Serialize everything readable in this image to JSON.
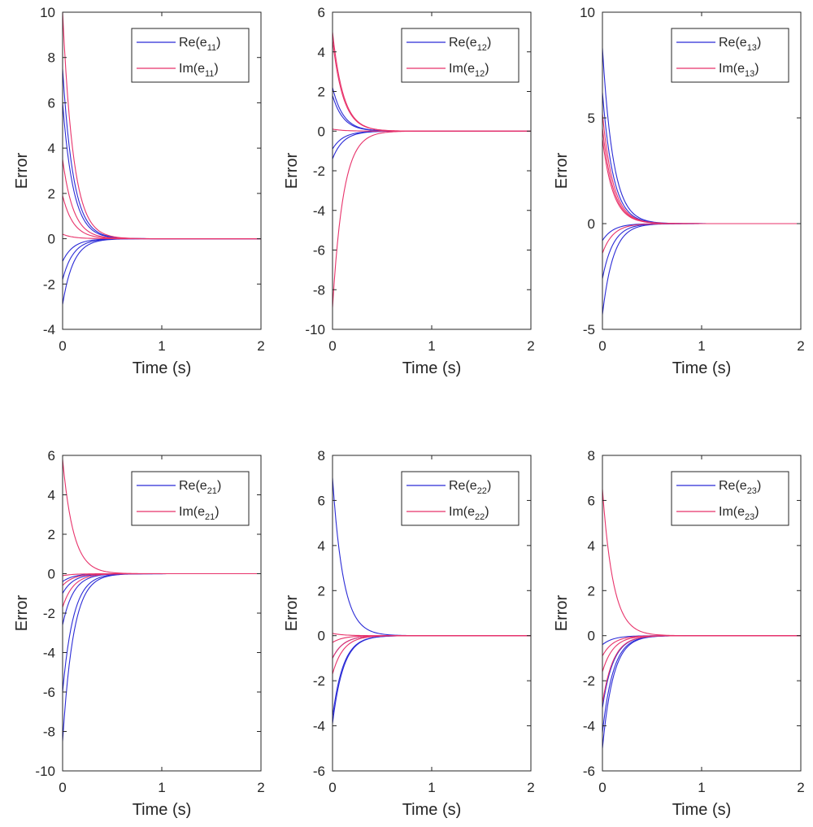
{
  "colors": {
    "re": "#2b2bd6",
    "im": "#e8336b",
    "axis": "#262626"
  },
  "chart_data": [
    {
      "type": "line",
      "xlabel": "Time (s)",
      "ylabel": "Error",
      "xlim": [
        0,
        2
      ],
      "ylim": [
        -4,
        10
      ],
      "xticks": [
        "0",
        "1",
        "2"
      ],
      "yticks": [
        "-4",
        "-2",
        "0",
        "2",
        "4",
        "6",
        "8",
        "10"
      ],
      "legend": {
        "position": "top-right",
        "entries": [
          {
            "base": "Re(e",
            "sub": "11",
            "close": ")"
          },
          {
            "base": "Im(e",
            "sub": "11",
            "close": ")"
          }
        ]
      },
      "series": [
        {
          "group": "re",
          "initial_values": [
            7.5,
            6.0,
            -1.0,
            -1.8,
            -2.9
          ],
          "settle_time": 0.6
        },
        {
          "group": "im",
          "initial_values": [
            10.0,
            3.5,
            1.9,
            0.2
          ],
          "settle_time": 0.6
        }
      ]
    },
    {
      "type": "line",
      "xlabel": "Time (s)",
      "ylabel": "Error",
      "xlim": [
        0,
        2
      ],
      "ylim": [
        -10,
        6
      ],
      "xticks": [
        "0",
        "1",
        "2"
      ],
      "yticks": [
        "-10",
        "-8",
        "-6",
        "-4",
        "-2",
        "0",
        "2",
        "4",
        "6"
      ],
      "legend": {
        "position": "top-right",
        "entries": [
          {
            "base": "Re(e",
            "sub": "12",
            "close": ")"
          },
          {
            "base": "Im(e",
            "sub": "12",
            "close": ")"
          }
        ]
      },
      "series": [
        {
          "group": "re",
          "initial_values": [
            2.2,
            1.8,
            -0.9,
            -1.4
          ],
          "settle_time": 0.6
        },
        {
          "group": "im",
          "initial_values": [
            5.0,
            4.6,
            0.1,
            -8.9
          ],
          "settle_time": 0.6
        }
      ]
    },
    {
      "type": "line",
      "xlabel": "Time (s)",
      "ylabel": "Error",
      "xlim": [
        0,
        2
      ],
      "ylim": [
        -5,
        10
      ],
      "xticks": [
        "0",
        "1",
        "2"
      ],
      "yticks": [
        "-5",
        "0",
        "5",
        "10"
      ],
      "legend": {
        "position": "top-right",
        "entries": [
          {
            "base": "Re(e",
            "sub": "13",
            "close": ")"
          },
          {
            "base": "Im(e",
            "sub": "13",
            "close": ")"
          }
        ]
      },
      "series": [
        {
          "group": "re",
          "initial_values": [
            8.3,
            6.2,
            -0.8,
            -2.6,
            -4.3
          ],
          "settle_time": 0.6
        },
        {
          "group": "im",
          "initial_values": [
            5.2,
            4.5,
            4.0,
            -1.4
          ],
          "settle_time": 0.6
        }
      ]
    },
    {
      "type": "line",
      "xlabel": "Time (s)",
      "ylabel": "Error",
      "xlim": [
        0,
        2
      ],
      "ylim": [
        -10,
        6
      ],
      "xticks": [
        "0",
        "1",
        "2"
      ],
      "yticks": [
        "-10",
        "-8",
        "-6",
        "-4",
        "-2",
        "0",
        "2",
        "4",
        "6"
      ],
      "legend": {
        "position": "top-right",
        "entries": [
          {
            "base": "Re(e",
            "sub": "21",
            "close": ")"
          },
          {
            "base": "Im(e",
            "sub": "21",
            "close": ")"
          }
        ]
      },
      "series": [
        {
          "group": "re",
          "initial_values": [
            -0.4,
            -1.0,
            -2.6,
            -6.0,
            -8.5
          ],
          "settle_time": 0.6
        },
        {
          "group": "im",
          "initial_values": [
            5.8,
            -0.1,
            -0.6,
            -1.7
          ],
          "settle_time": 0.6
        }
      ]
    },
    {
      "type": "line",
      "xlabel": "Time (s)",
      "ylabel": "Error",
      "xlim": [
        0,
        2
      ],
      "ylim": [
        -6,
        8
      ],
      "xticks": [
        "0",
        "1",
        "2"
      ],
      "yticks": [
        "-6",
        "-4",
        "-2",
        "0",
        "2",
        "4",
        "6",
        "8"
      ],
      "legend": {
        "position": "top-right",
        "entries": [
          {
            "base": "Re(e",
            "sub": "22",
            "close": ")"
          },
          {
            "base": "Im(e",
            "sub": "22",
            "close": ")"
          }
        ]
      },
      "series": [
        {
          "group": "re",
          "initial_values": [
            7.0,
            -1.0,
            -3.6,
            -3.9
          ],
          "settle_time": 0.6
        },
        {
          "group": "im",
          "initial_values": [
            0.1,
            -0.3,
            -1.0,
            -1.7
          ],
          "settle_time": 0.6
        }
      ]
    },
    {
      "type": "line",
      "xlabel": "Time (s)",
      "ylabel": "Error",
      "xlim": [
        0,
        2
      ],
      "ylim": [
        -6,
        8
      ],
      "xticks": [
        "0",
        "1",
        "2"
      ],
      "yticks": [
        "-6",
        "-4",
        "-2",
        "0",
        "2",
        "4",
        "6",
        "8"
      ],
      "legend": {
        "position": "top-right",
        "entries": [
          {
            "base": "Re(e",
            "sub": "23",
            "close": ")"
          },
          {
            "base": "Im(e",
            "sub": "23",
            "close": ")"
          }
        ]
      },
      "series": [
        {
          "group": "re",
          "initial_values": [
            -0.4,
            -3.2,
            -4.3,
            -5.0
          ],
          "settle_time": 0.6
        },
        {
          "group": "im",
          "initial_values": [
            6.5,
            -0.9,
            -1.6,
            -3.0
          ],
          "settle_time": 0.6
        }
      ]
    }
  ]
}
